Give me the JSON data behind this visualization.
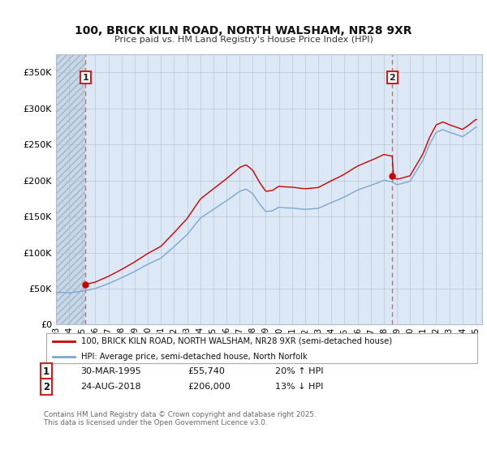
{
  "title1": "100, BRICK KILN ROAD, NORTH WALSHAM, NR28 9XR",
  "title2": "Price paid vs. HM Land Registry's House Price Index (HPI)",
  "xlim_start": 1993.0,
  "xlim_end": 2025.5,
  "ylim": [
    0,
    375000
  ],
  "yticks": [
    0,
    50000,
    100000,
    150000,
    200000,
    250000,
    300000,
    350000
  ],
  "ytick_labels": [
    "£0",
    "£50K",
    "£100K",
    "£150K",
    "£200K",
    "£250K",
    "£300K",
    "£350K"
  ],
  "bg_color": "#dce8f5",
  "hatch_color": "#b8c8d8",
  "grid_color": "#b0bece",
  "legend1_label": "100, BRICK KILN ROAD, NORTH WALSHAM, NR28 9XR (semi-detached house)",
  "legend2_label": "HPI: Average price, semi-detached house, North Norfolk",
  "sale1_date": "30-MAR-1995",
  "sale1_price": "£55,740",
  "sale1_hpi": "20% ↑ HPI",
  "sale2_date": "24-AUG-2018",
  "sale2_price": "£206,000",
  "sale2_hpi": "13% ↓ HPI",
  "footer": "Contains HM Land Registry data © Crown copyright and database right 2025.\nThis data is licensed under the Open Government Licence v3.0.",
  "line_red": "#cc0000",
  "line_blue": "#7aa8d0",
  "marker1_x": 1995.25,
  "marker1_y": 55740,
  "marker2_x": 2018.65,
  "marker2_y": 206000,
  "xtick_years": [
    1993,
    1994,
    1995,
    1996,
    1997,
    1998,
    1999,
    2000,
    2001,
    2002,
    2003,
    2004,
    2005,
    2006,
    2007,
    2008,
    2009,
    2010,
    2011,
    2012,
    2013,
    2014,
    2015,
    2016,
    2017,
    2018,
    2019,
    2020,
    2021,
    2022,
    2023,
    2024,
    2025
  ]
}
